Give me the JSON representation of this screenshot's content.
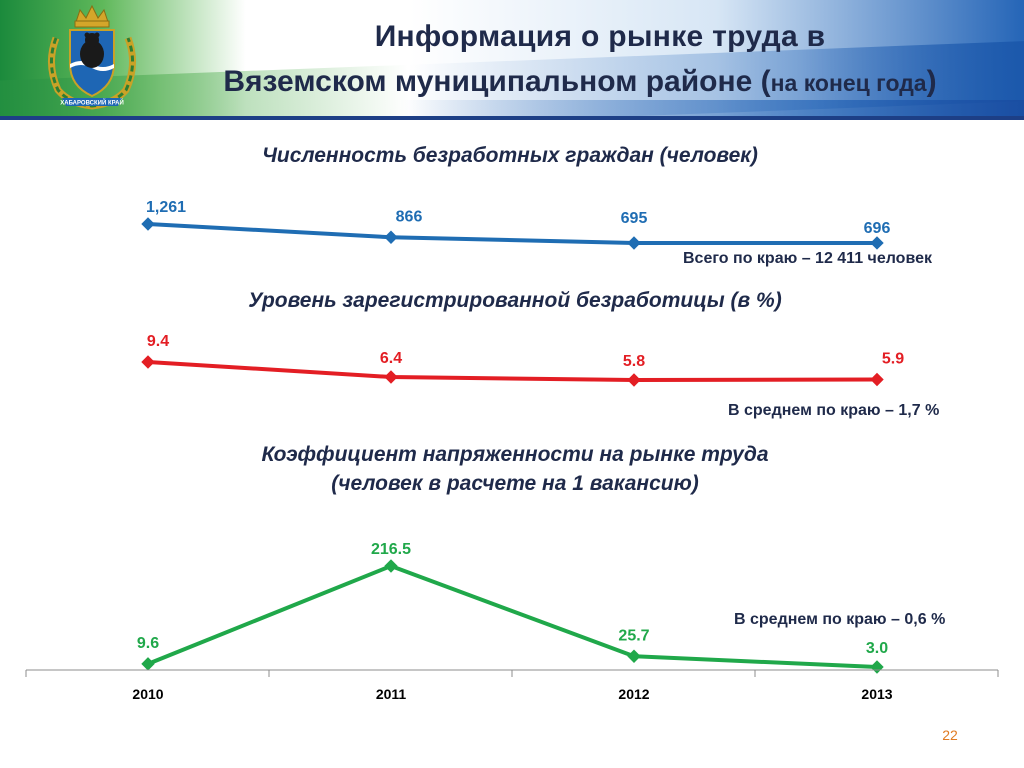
{
  "header": {
    "title_line1": "Информация о рынке труда в",
    "title_line2_main": "Вяземском муниципальном районе (",
    "title_line2_small": "на конец года",
    "title_line2_close": ")",
    "emblem_caption": "ХАБАРОВСКИЙ КРАЙ"
  },
  "colors": {
    "series1": "#1f6db3",
    "series2": "#e31e24",
    "series3": "#20a84a",
    "text": "#1f2a4a",
    "page_number": "#e07b22"
  },
  "sections": {
    "unemployed": {
      "title": "Численность безработных граждан (человек)",
      "note": "Всего по краю – 12 411 человек"
    },
    "rate": {
      "title": "Уровень зарегистрированной безработицы (в %)",
      "note": "В среднем по краю – 1,7 %"
    },
    "tension": {
      "title_line1": "Коэффициент напряженности на рынке труда",
      "title_line2": "(человек в расчете на 1 вакансию)",
      "note": "В среднем по краю – 0,6 %"
    }
  },
  "chart_data": [
    {
      "type": "line",
      "title": "Численность безработных граждан (человек)",
      "categories": [
        "2010",
        "2011",
        "2012",
        "2013"
      ],
      "values": [
        1261,
        866,
        695,
        696
      ],
      "labels": [
        "1,261",
        "866",
        "695",
        "696"
      ],
      "color": "#1f6db3"
    },
    {
      "type": "line",
      "title": "Уровень зарегистрированной безработицы (в %)",
      "categories": [
        "2010",
        "2011",
        "2012",
        "2013"
      ],
      "values": [
        9.4,
        6.4,
        5.8,
        5.9
      ],
      "labels": [
        "9.4",
        "6.4",
        "5.8",
        "5.9"
      ],
      "color": "#e31e24"
    },
    {
      "type": "line",
      "title": "Коэффициент напряженности на рынке труда (человек в расчете на 1 вакансию)",
      "categories": [
        "2010",
        "2011",
        "2012",
        "2013"
      ],
      "values": [
        9.6,
        216.5,
        25.7,
        3.0
      ],
      "labels": [
        "9.6",
        "216.5",
        "25.7",
        "3.0"
      ],
      "color": "#20a84a",
      "grid": false
    }
  ],
  "page_number": "22"
}
